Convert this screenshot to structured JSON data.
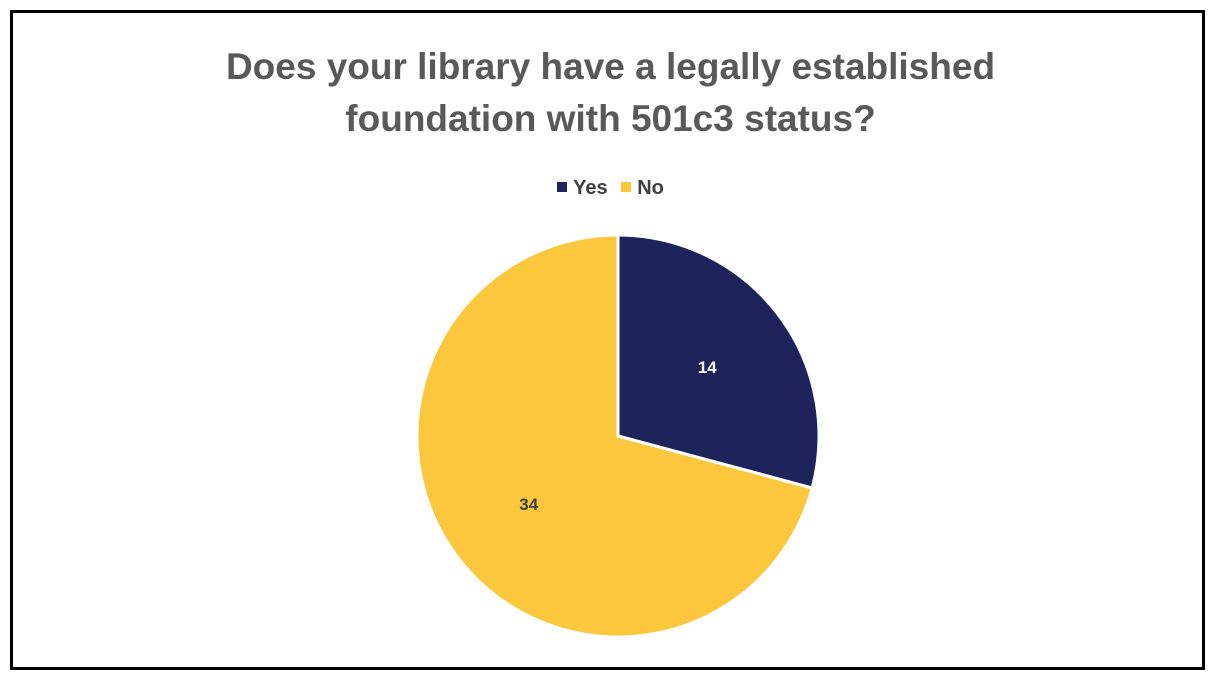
{
  "chart_data": {
    "type": "pie",
    "title_lines": [
      "Does your library have a legally established",
      "foundation with 501c3 status?"
    ],
    "categories": [
      "Yes",
      "No"
    ],
    "values": [
      14,
      34
    ],
    "colors": [
      "#1F235B",
      "#FCC73C"
    ],
    "data_label_colors": [
      "#FFFFFF",
      "#404040"
    ],
    "legend_position": "top"
  }
}
